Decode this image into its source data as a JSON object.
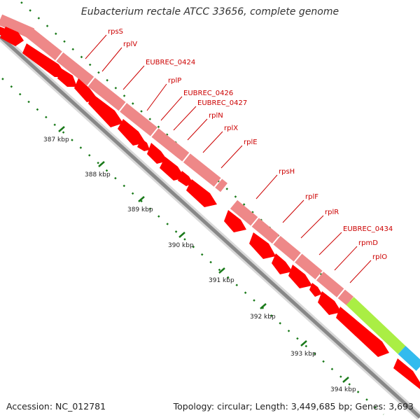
{
  "title": "Eubacterium rectale ATCC 33656, complete genome",
  "accession": "Accession: NC_012781",
  "summary": "Topology: circular; Length: 3,449,685 bp; Genes: 3,693",
  "ticks": [
    "387 kbp",
    "388 kbp",
    "389 kbp",
    "390 kbp",
    "391 kbp",
    "392 kbp",
    "393 kbp",
    "394 kbp"
  ],
  "gene_labels": [
    "rpsS",
    "rplV",
    "EUBREC_0424",
    "rplP",
    "EUBREC_0426",
    "EUBREC_0427",
    "rplN",
    "rplX",
    "rplE",
    "rpsH",
    "rplF",
    "rplR",
    "EUBREC_0434",
    "rpmD",
    "rplO"
  ],
  "colors": {
    "cds": "#ff0000",
    "gene": "#ee8888",
    "label": "#cc0000",
    "tick": "#1a7a1a",
    "backbone": "#888888",
    "feature_green": "#aaee44",
    "feature_blue": "#33bbee"
  }
}
